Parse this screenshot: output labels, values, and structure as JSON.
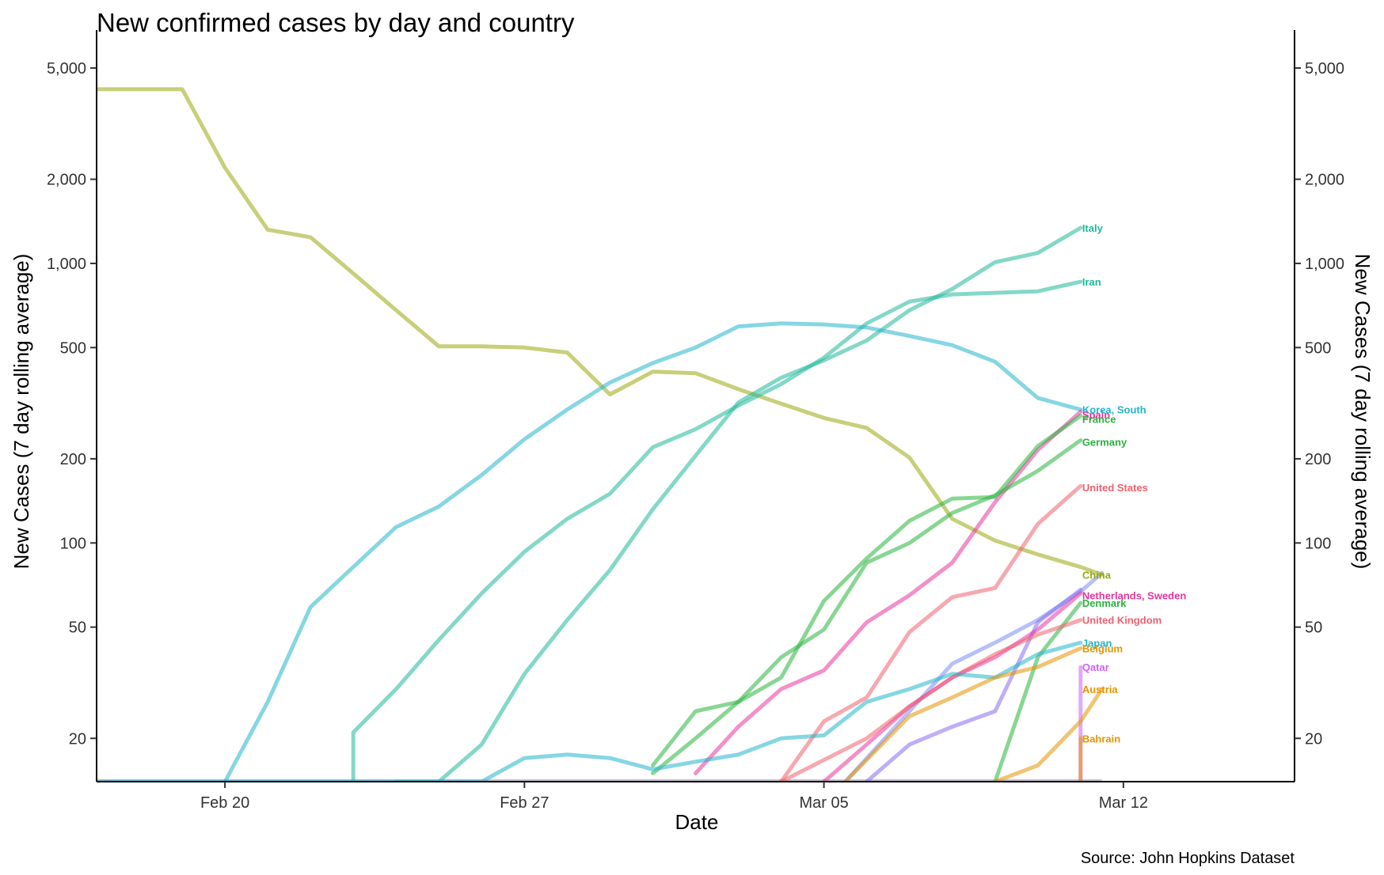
{
  "chart_data": {
    "type": "line",
    "title": "New confirmed cases by day and country",
    "xlabel": "Date",
    "ylabel": "New Cases (7 day rolling average)",
    "ylabel_right": "New Cases (7 day rolling average)",
    "caption": "Source: John Hopkins Dataset",
    "y_scale": "log",
    "ylim": [
      14,
      6000
    ],
    "xlim": [
      "2020-02-17",
      "2020-03-16"
    ],
    "grid": false,
    "legend": "none (direct labels at line ends)",
    "x_ticks": [
      {
        "date": "2020-02-20",
        "label": "Feb 20"
      },
      {
        "date": "2020-02-27",
        "label": "Feb 27"
      },
      {
        "date": "2020-03-05",
        "label": "Mar 05"
      },
      {
        "date": "2020-03-12",
        "label": "Mar 12"
      }
    ],
    "y_ticks": [
      {
        "value": 20,
        "label": "20"
      },
      {
        "value": 50,
        "label": "50"
      },
      {
        "value": 100,
        "label": "100"
      },
      {
        "value": 200,
        "label": "200"
      },
      {
        "value": 500,
        "label": "500"
      },
      {
        "value": 1000,
        "label": "1,000"
      },
      {
        "value": 2000,
        "label": "2,000"
      },
      {
        "value": 5000,
        "label": "5,000"
      }
    ],
    "series": [
      {
        "name": "China",
        "color": "#9AA80D",
        "points": [
          [
            "2020-02-17",
            4200
          ],
          [
            "2020-02-19",
            4200
          ],
          [
            "2020-02-20",
            2200
          ],
          [
            "2020-02-21",
            1320
          ],
          [
            "2020-02-22",
            1240
          ],
          [
            "2020-02-23",
            920
          ],
          [
            "2020-02-24",
            680
          ],
          [
            "2020-02-25",
            505
          ],
          [
            "2020-02-26",
            505
          ],
          [
            "2020-02-27",
            500
          ],
          [
            "2020-02-28",
            480
          ],
          [
            "2020-02-29",
            340
          ],
          [
            "2020-03-01",
            410
          ],
          [
            "2020-03-02",
            405
          ],
          [
            "2020-03-03",
            355
          ],
          [
            "2020-03-04",
            315
          ],
          [
            "2020-03-05",
            280
          ],
          [
            "2020-03-06",
            258
          ],
          [
            "2020-03-07",
            202
          ],
          [
            "2020-03-08",
            122
          ],
          [
            "2020-03-09",
            102
          ],
          [
            "2020-03-10",
            91
          ],
          [
            "2020-03-11",
            82
          ],
          [
            "2020-03-11.5",
            77
          ]
        ]
      },
      {
        "name": "Italy",
        "color": "#1FB89A",
        "points": [
          [
            "2020-02-24",
            14
          ],
          [
            "2020-02-25",
            14
          ],
          [
            "2020-02-26",
            19
          ],
          [
            "2020-02-27",
            34
          ],
          [
            "2020-02-28",
            53
          ],
          [
            "2020-02-29",
            80
          ],
          [
            "2020-03-01",
            132
          ],
          [
            "2020-03-02",
            205
          ],
          [
            "2020-03-03",
            318
          ],
          [
            "2020-03-04",
            390
          ],
          [
            "2020-03-05",
            450
          ],
          [
            "2020-03-06",
            530
          ],
          [
            "2020-03-07",
            680
          ],
          [
            "2020-03-08",
            810
          ],
          [
            "2020-03-09",
            1010
          ],
          [
            "2020-03-10",
            1090
          ],
          [
            "2020-03-11",
            1340
          ]
        ]
      },
      {
        "name": "Iran",
        "color": "#1FB89A",
        "points": [
          [
            "2020-02-23",
            14
          ],
          [
            "2020-02-23",
            21
          ],
          [
            "2020-02-24",
            30
          ],
          [
            "2020-02-25",
            45
          ],
          [
            "2020-02-26",
            66
          ],
          [
            "2020-02-27",
            93
          ],
          [
            "2020-02-28",
            122
          ],
          [
            "2020-02-29",
            150
          ],
          [
            "2020-03-01",
            220
          ],
          [
            "2020-03-02",
            255
          ],
          [
            "2020-03-03",
            310
          ],
          [
            "2020-03-04",
            370
          ],
          [
            "2020-03-05",
            460
          ],
          [
            "2020-03-06",
            610
          ],
          [
            "2020-03-07",
            730
          ],
          [
            "2020-03-08",
            775
          ],
          [
            "2020-03-09",
            785
          ],
          [
            "2020-03-10",
            795
          ],
          [
            "2020-03-11",
            860
          ]
        ]
      },
      {
        "name": "Korea, South",
        "color": "#22B5CC",
        "points": [
          [
            "2020-02-20",
            14
          ],
          [
            "2020-02-21",
            27
          ],
          [
            "2020-02-22",
            59
          ],
          [
            "2020-02-23",
            82
          ],
          [
            "2020-02-24",
            114
          ],
          [
            "2020-02-25",
            135
          ],
          [
            "2020-02-26",
            175
          ],
          [
            "2020-02-27",
            235
          ],
          [
            "2020-02-28",
            300
          ],
          [
            "2020-02-29",
            375
          ],
          [
            "2020-03-01",
            440
          ],
          [
            "2020-03-02",
            500
          ],
          [
            "2020-03-03",
            595
          ],
          [
            "2020-03-04",
            610
          ],
          [
            "2020-03-05",
            605
          ],
          [
            "2020-03-06",
            590
          ],
          [
            "2020-03-07",
            550
          ],
          [
            "2020-03-08",
            510
          ],
          [
            "2020-03-09",
            445
          ],
          [
            "2020-03-10",
            330
          ],
          [
            "2020-03-11",
            300
          ]
        ]
      },
      {
        "name": "Spain",
        "color": "#E8359C",
        "points": [
          [
            "2020-03-02",
            15
          ],
          [
            "2020-03-03",
            22
          ],
          [
            "2020-03-04",
            30
          ],
          [
            "2020-03-05",
            35
          ],
          [
            "2020-03-06",
            52
          ],
          [
            "2020-03-07",
            65
          ],
          [
            "2020-03-08",
            85
          ],
          [
            "2020-03-09",
            140
          ],
          [
            "2020-03-10",
            215
          ],
          [
            "2020-03-11",
            295
          ]
        ]
      },
      {
        "name": "France",
        "color": "#28B43C",
        "points": [
          [
            "2020-03-01",
            16
          ],
          [
            "2020-03-02",
            25
          ],
          [
            "2020-03-03",
            27
          ],
          [
            "2020-03-04",
            33
          ],
          [
            "2020-03-05",
            62
          ],
          [
            "2020-03-06",
            88
          ],
          [
            "2020-03-07",
            120
          ],
          [
            "2020-03-08",
            144
          ],
          [
            "2020-03-09",
            146
          ],
          [
            "2020-03-10",
            222
          ],
          [
            "2020-03-11",
            285
          ]
        ]
      },
      {
        "name": "Germany",
        "color": "#28B43C",
        "points": [
          [
            "2020-03-01",
            15
          ],
          [
            "2020-03-02",
            20
          ],
          [
            "2020-03-03",
            27
          ],
          [
            "2020-03-04",
            39
          ],
          [
            "2020-03-05",
            49
          ],
          [
            "2020-03-06",
            85
          ],
          [
            "2020-03-07",
            100
          ],
          [
            "2020-03-08",
            128
          ],
          [
            "2020-03-09",
            148
          ],
          [
            "2020-03-10",
            181
          ],
          [
            "2020-03-11",
            233
          ]
        ]
      },
      {
        "name": "United States",
        "color": "#F0606E",
        "points": [
          [
            "2020-03-04",
            14
          ],
          [
            "2020-03-05",
            23
          ],
          [
            "2020-03-06",
            28
          ],
          [
            "2020-03-07",
            48
          ],
          [
            "2020-03-08",
            64
          ],
          [
            "2020-03-09",
            69
          ],
          [
            "2020-03-10",
            117
          ],
          [
            "2020-03-11",
            160
          ]
        ]
      },
      {
        "name": "Netherlands, Sweden",
        "color": "#E8359C",
        "points": [
          [
            "2020-03-05",
            14
          ],
          [
            "2020-03-06",
            19
          ],
          [
            "2020-03-07",
            26
          ],
          [
            "2020-03-08",
            33
          ],
          [
            "2020-03-09",
            39
          ],
          [
            "2020-03-10",
            49
          ],
          [
            "2020-03-11",
            66
          ]
        ]
      },
      {
        "name": "Denmark",
        "color": "#28B43C",
        "points": [
          [
            "2020-03-09",
            14
          ],
          [
            "2020-03-10",
            39
          ],
          [
            "2020-03-11",
            61
          ]
        ]
      },
      {
        "name": "United Kingdom",
        "color": "#F0606E",
        "points": [
          [
            "2020-03-04",
            14
          ],
          [
            "2020-03-06",
            20
          ],
          [
            "2020-03-07",
            26
          ],
          [
            "2020-03-08",
            33
          ],
          [
            "2020-03-09",
            40
          ],
          [
            "2020-03-10",
            47
          ],
          [
            "2020-03-11",
            53
          ]
        ]
      },
      {
        "name": "Japan",
        "color": "#22B5CC",
        "points": [
          [
            "2020-02-17",
            14
          ],
          [
            "2020-02-26",
            14
          ],
          [
            "2020-02-27",
            17
          ],
          [
            "2020-02-28",
            17.5
          ],
          [
            "2020-02-29",
            17
          ],
          [
            "2020-03-01",
            15.5
          ],
          [
            "2020-03-02",
            16.5
          ],
          [
            "2020-03-03",
            17.5
          ],
          [
            "2020-03-04",
            20
          ],
          [
            "2020-03-05",
            20.5
          ],
          [
            "2020-03-06",
            27
          ],
          [
            "2020-03-07",
            30
          ],
          [
            "2020-03-08",
            34
          ],
          [
            "2020-03-09",
            33
          ],
          [
            "2020-03-10",
            40
          ],
          [
            "2020-03-11",
            44
          ]
        ]
      },
      {
        "name": "Belgium",
        "color": "#E69400",
        "points": [
          [
            "2020-03-05.5",
            14
          ],
          [
            "2020-03-07",
            24
          ],
          [
            "2020-03-08",
            28
          ],
          [
            "2020-03-09",
            33
          ],
          [
            "2020-03-10",
            36
          ],
          [
            "2020-03-11",
            42
          ]
        ]
      },
      {
        "name": "Qatar",
        "color": "#CB62F5",
        "points": [
          [
            "2020-03-11",
            14
          ],
          [
            "2020-03-11",
            36
          ]
        ]
      },
      {
        "name": "Austria",
        "color": "#E69400",
        "points": [
          [
            "2020-03-09",
            14
          ],
          [
            "2020-03-10",
            16
          ],
          [
            "2020-03-11",
            23
          ],
          [
            "2020-03-11.5",
            30
          ]
        ]
      },
      {
        "name": "Bahrain",
        "color": "#E69400",
        "points": [
          [
            "2020-03-11",
            14
          ],
          [
            "2020-03-11",
            20
          ]
        ]
      }
    ],
    "extra_lines": [
      {
        "color": "#7B8CF5",
        "points": [
          [
            "2020-03-05.5",
            14
          ],
          [
            "2020-03-07",
            25
          ],
          [
            "2020-03-08",
            37
          ],
          [
            "2020-03-09",
            44
          ],
          [
            "2020-03-10",
            53
          ],
          [
            "2020-03-11",
            67
          ],
          [
            "2020-03-11.5",
            78
          ]
        ]
      },
      {
        "color": "#8A6CF0",
        "points": [
          [
            "2020-03-06",
            14
          ],
          [
            "2020-03-07",
            19
          ],
          [
            "2020-03-08",
            22
          ],
          [
            "2020-03-09",
            25
          ],
          [
            "2020-03-10",
            52
          ],
          [
            "2020-03-11",
            68
          ]
        ]
      }
    ],
    "label_positions": {
      "Italy": 1340,
      "Iran": 860,
      "Korea, South": 300,
      "Spain": 288,
      "France": 278,
      "Germany": 230,
      "United States": 158,
      "China": 77,
      "Netherlands, Sweden": 65,
      "Denmark": 61,
      "United Kingdom": 53,
      "Japan": 44,
      "Belgium": 42,
      "Qatar": 36,
      "Austria": 30,
      "Bahrain": 20
    }
  }
}
